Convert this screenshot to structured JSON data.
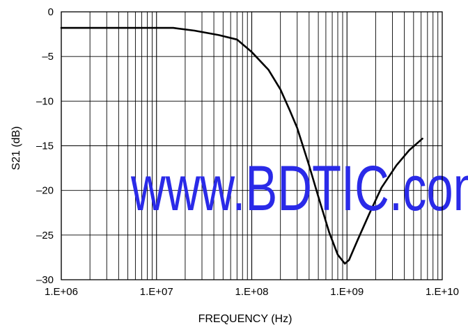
{
  "chart_data": {
    "type": "line",
    "xlabel": "FREQUENCY (Hz)",
    "ylabel": "S21 (dB)",
    "x_scale": "log",
    "xlim": [
      1000000,
      10000000000
    ],
    "ylim": [
      -30,
      0
    ],
    "x_ticks": [
      {
        "value": 1000000,
        "label": "1.E+06"
      },
      {
        "value": 10000000,
        "label": "1.E+07"
      },
      {
        "value": 100000000,
        "label": "1.E+08"
      },
      {
        "value": 1000000000,
        "label": "1.E+09"
      },
      {
        "value": 10000000000,
        "label": "1.E+10"
      }
    ],
    "y_ticks": [
      {
        "value": 0,
        "label": "0"
      },
      {
        "value": -5,
        "label": "–5"
      },
      {
        "value": -10,
        "label": "–10"
      },
      {
        "value": -15,
        "label": "–15"
      },
      {
        "value": -20,
        "label": "–20"
      },
      {
        "value": -25,
        "label": "–25"
      },
      {
        "value": -30,
        "label": "–30"
      }
    ],
    "grid": true,
    "series": [
      {
        "color": "#000000",
        "points": [
          [
            1000000,
            -1.8
          ],
          [
            5000000,
            -1.8
          ],
          [
            15000000,
            -1.8
          ],
          [
            25000000,
            -2.1
          ],
          [
            45000000,
            -2.6
          ],
          [
            70000000,
            -3.1
          ],
          [
            100000000,
            -4.5
          ],
          [
            150000000,
            -6.5
          ],
          [
            200000000,
            -8.7
          ],
          [
            250000000,
            -11.0
          ],
          [
            300000000,
            -13.0
          ],
          [
            400000000,
            -17.2
          ],
          [
            500000000,
            -20.7
          ],
          [
            650000000,
            -24.7
          ],
          [
            800000000,
            -27.2
          ],
          [
            950000000,
            -28.2
          ],
          [
            1050000000,
            -27.8
          ],
          [
            1300000000,
            -25.5
          ],
          [
            1700000000,
            -22.7
          ],
          [
            2300000000,
            -19.7
          ],
          [
            3300000000,
            -17.2
          ],
          [
            4500000000,
            -15.5
          ],
          [
            6200000000,
            -14.2
          ]
        ]
      }
    ]
  },
  "watermark": {
    "text": "www.BDTIC.com",
    "color": "#2a2ae8"
  }
}
